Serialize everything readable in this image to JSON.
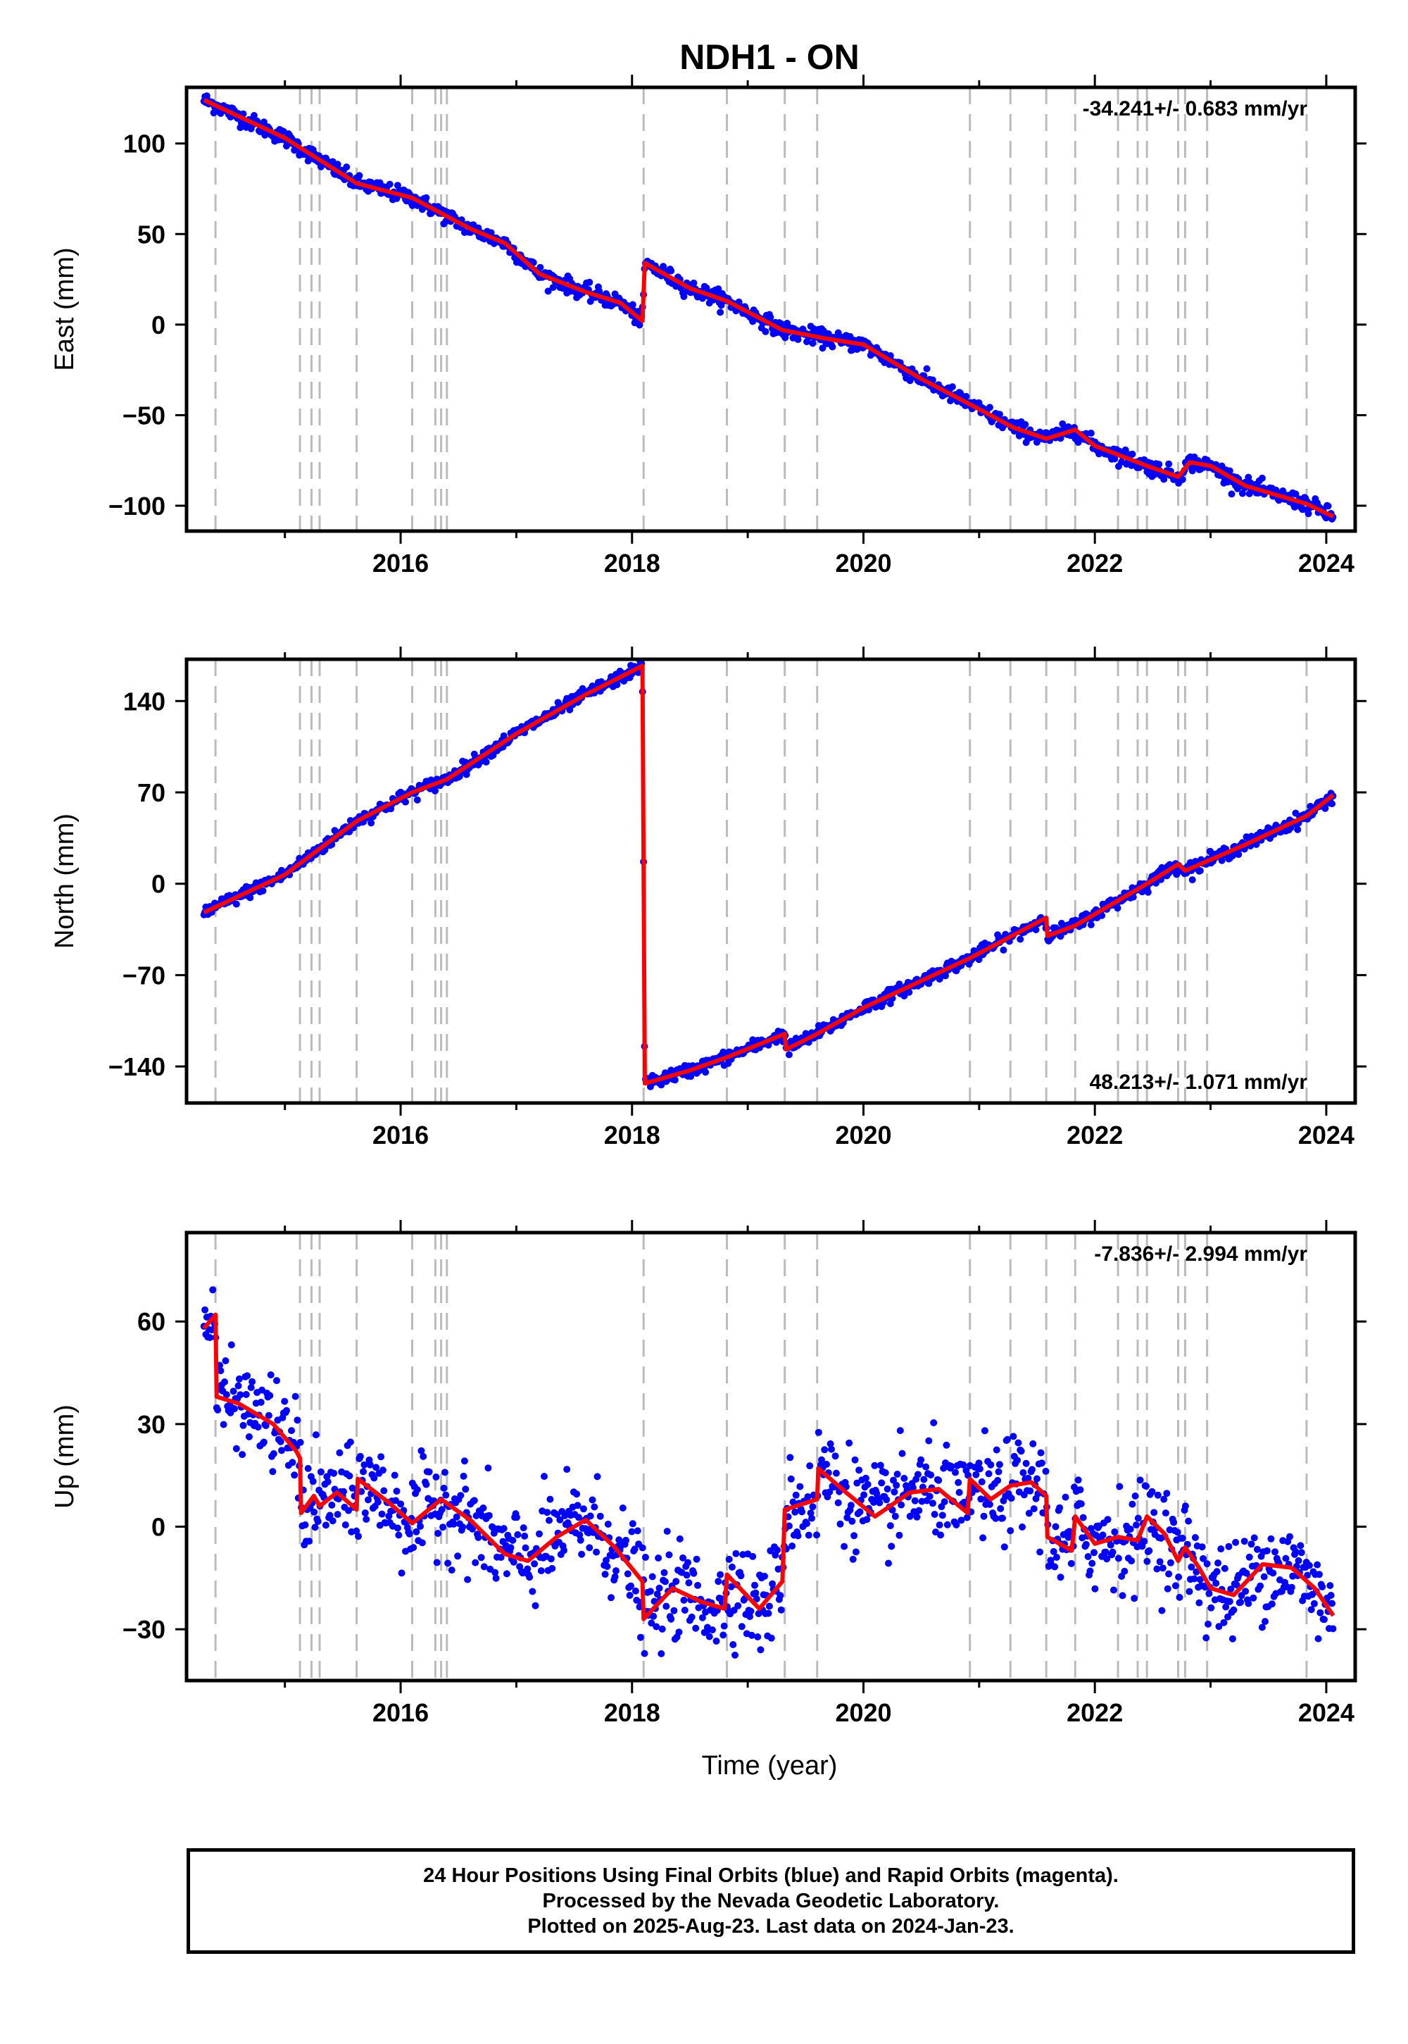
{
  "title": "NDH1 - ON",
  "x_axis_label": "Time (year)",
  "footer": {
    "line1": "24 Hour Positions Using Final Orbits (blue) and Rapid Orbits (magenta).",
    "line2": "Processed by the Nevada Geodetic Laboratory.",
    "line3": "Plotted on 2025-Aug-23. Last data on 2024-Jan-23."
  },
  "colors": {
    "data_points": "#0000ff",
    "model_line": "#ff0000",
    "event_lines": "#bbbbbb"
  },
  "chart_data": [
    {
      "type": "scatter",
      "panel": "east",
      "ylabel": "East (mm)",
      "rate_label": "-34.241+/- 0.683 mm/yr",
      "rate_position": "top-right",
      "xlim": [
        2014.15,
        2024.25
      ],
      "ylim": [
        -114,
        131
      ],
      "x_ticks": [
        2016,
        2018,
        2020,
        2022,
        2024
      ],
      "y_ticks": [
        100,
        50,
        0,
        -50,
        -100
      ],
      "y_tick_labels": [
        "100",
        "50",
        "0",
        "−50",
        "−100"
      ],
      "event_lines": [
        2014.4,
        2015.13,
        2015.23,
        2015.3,
        2015.62,
        2016.1,
        2016.3,
        2016.35,
        2016.4,
        2018.1,
        2018.82,
        2019.32,
        2019.6,
        2020.92,
        2021.27,
        2021.58,
        2021.83,
        2022.2,
        2022.37,
        2022.45,
        2022.72,
        2022.78,
        2022.97,
        2023.83
      ],
      "model_line": {
        "x": [
          2014.3,
          2015.0,
          2015.62,
          2016.1,
          2016.6,
          2016.9,
          2017.2,
          2017.6,
          2017.9,
          2018.09,
          2018.11,
          2018.5,
          2018.82,
          2019.3,
          2019.7,
          2020.0,
          2020.5,
          2020.95,
          2021.3,
          2021.58,
          2021.83,
          2022.0,
          2022.45,
          2022.72,
          2022.82,
          2023.0,
          2023.3,
          2023.83,
          2024.06
        ],
        "y": [
          124,
          103,
          78,
          70,
          53,
          45,
          28,
          18,
          12,
          2,
          34,
          20,
          13,
          -3,
          -8,
          -11,
          -30,
          -45,
          -57,
          -63,
          -58,
          -67,
          -78,
          -84,
          -76,
          -78,
          -89,
          -99,
          -106
        ]
      },
      "steps": [
        {
          "x": 2018.1,
          "from": 2,
          "to": 34
        },
        {
          "x": 2021.58,
          "from": -63,
          "to": -60
        },
        {
          "x": 2022.75,
          "from": -84,
          "to": -78
        }
      ],
      "noise_mm": 2.2
    },
    {
      "type": "scatter",
      "panel": "north",
      "ylabel": "North (mm)",
      "rate_label": "48.213+/- 1.071 mm/yr",
      "rate_position": "bottom-right",
      "xlim": [
        2014.15,
        2024.25
      ],
      "ylim": [
        -168,
        172
      ],
      "x_ticks": [
        2016,
        2018,
        2020,
        2022,
        2024
      ],
      "y_ticks": [
        140,
        70,
        0,
        -70,
        -140
      ],
      "y_tick_labels": [
        "140",
        "70",
        "0",
        "−70",
        "−140"
      ],
      "event_lines": [
        2014.4,
        2015.13,
        2015.23,
        2015.3,
        2015.62,
        2016.1,
        2016.3,
        2016.35,
        2016.4,
        2018.1,
        2018.82,
        2019.32,
        2019.6,
        2020.92,
        2021.27,
        2021.58,
        2021.83,
        2022.2,
        2022.37,
        2022.45,
        2022.72,
        2022.78,
        2022.97,
        2023.83
      ],
      "model_line": {
        "x": [
          2014.3,
          2015.0,
          2015.62,
          2016.1,
          2016.4,
          2017.0,
          2017.6,
          2018.09,
          2018.11,
          2018.5,
          2018.82,
          2019.32,
          2019.33,
          2019.6,
          2020.0,
          2020.92,
          2021.58,
          2021.59,
          2021.83,
          2022.45,
          2022.72,
          2022.78,
          2023.3,
          2023.83,
          2024.06
        ],
        "y": [
          -22,
          7,
          48,
          70,
          80,
          115,
          145,
          167,
          -153,
          -143,
          -133,
          -115,
          -127,
          -115,
          -95,
          -57,
          -26,
          -40,
          -32,
          0,
          15,
          10,
          30,
          52,
          68
        ]
      },
      "steps": [
        {
          "x": 2018.1,
          "from": 167,
          "to": -153
        }
      ],
      "noise_mm": 2.5
    },
    {
      "type": "scatter",
      "panel": "up",
      "ylabel": "Up (mm)",
      "rate_label": "-7.836+/- 2.994 mm/yr",
      "rate_position": "top-right",
      "xlim": [
        2014.15,
        2024.25
      ],
      "ylim": [
        -45,
        86
      ],
      "x_ticks": [
        2016,
        2018,
        2020,
        2022,
        2024
      ],
      "y_ticks": [
        60,
        30,
        0,
        -30
      ],
      "y_tick_labels": [
        "60",
        "30",
        "0",
        "−30"
      ],
      "event_lines": [
        2014.4,
        2015.13,
        2015.23,
        2015.3,
        2015.62,
        2016.1,
        2016.3,
        2016.35,
        2016.4,
        2018.1,
        2018.82,
        2019.32,
        2019.6,
        2020.92,
        2021.27,
        2021.58,
        2021.83,
        2022.2,
        2022.37,
        2022.45,
        2022.72,
        2022.78,
        2022.97,
        2023.83
      ],
      "model_line": {
        "x": [
          2014.3,
          2014.4,
          2014.41,
          2014.6,
          2014.9,
          2015.1,
          2015.13,
          2015.14,
          2015.25,
          2015.3,
          2015.45,
          2015.62,
          2015.63,
          2015.9,
          2016.1,
          2016.35,
          2016.6,
          2016.9,
          2017.1,
          2017.35,
          2017.6,
          2017.85,
          2018.09,
          2018.1,
          2018.35,
          2018.6,
          2018.8,
          2018.82,
          2019.1,
          2019.3,
          2019.32,
          2019.6,
          2019.61,
          2019.85,
          2020.1,
          2020.4,
          2020.65,
          2020.9,
          2020.92,
          2021.1,
          2021.27,
          2021.45,
          2021.58,
          2021.59,
          2021.8,
          2021.83,
          2022.0,
          2022.2,
          2022.37,
          2022.45,
          2022.6,
          2022.72,
          2022.78,
          2022.9,
          2023.0,
          2023.2,
          2023.45,
          2023.7,
          2023.9,
          2024.06
        ],
        "y": [
          58,
          62,
          38,
          36,
          30,
          22,
          20,
          4,
          9,
          6,
          10,
          5,
          14,
          7,
          1,
          8,
          2,
          -8,
          -10,
          -3,
          2,
          -6,
          -16,
          -27,
          -18,
          -22,
          -24,
          -14,
          -24,
          -16,
          5,
          8,
          17,
          10,
          3,
          10,
          11,
          4,
          14,
          8,
          12,
          13,
          9,
          -3,
          -7,
          3,
          -5,
          -3,
          -4,
          3,
          -2,
          -10,
          -6,
          -12,
          -18,
          -20,
          -11,
          -12,
          -18,
          -26
        ]
      },
      "steps": [
        {
          "x": 2014.4,
          "from": 62,
          "to": 38
        },
        {
          "x": 2018.1,
          "from": -16,
          "to": -27
        },
        {
          "x": 2019.32,
          "from": -16,
          "to": 5
        }
      ],
      "noise_mm": 7
    }
  ]
}
